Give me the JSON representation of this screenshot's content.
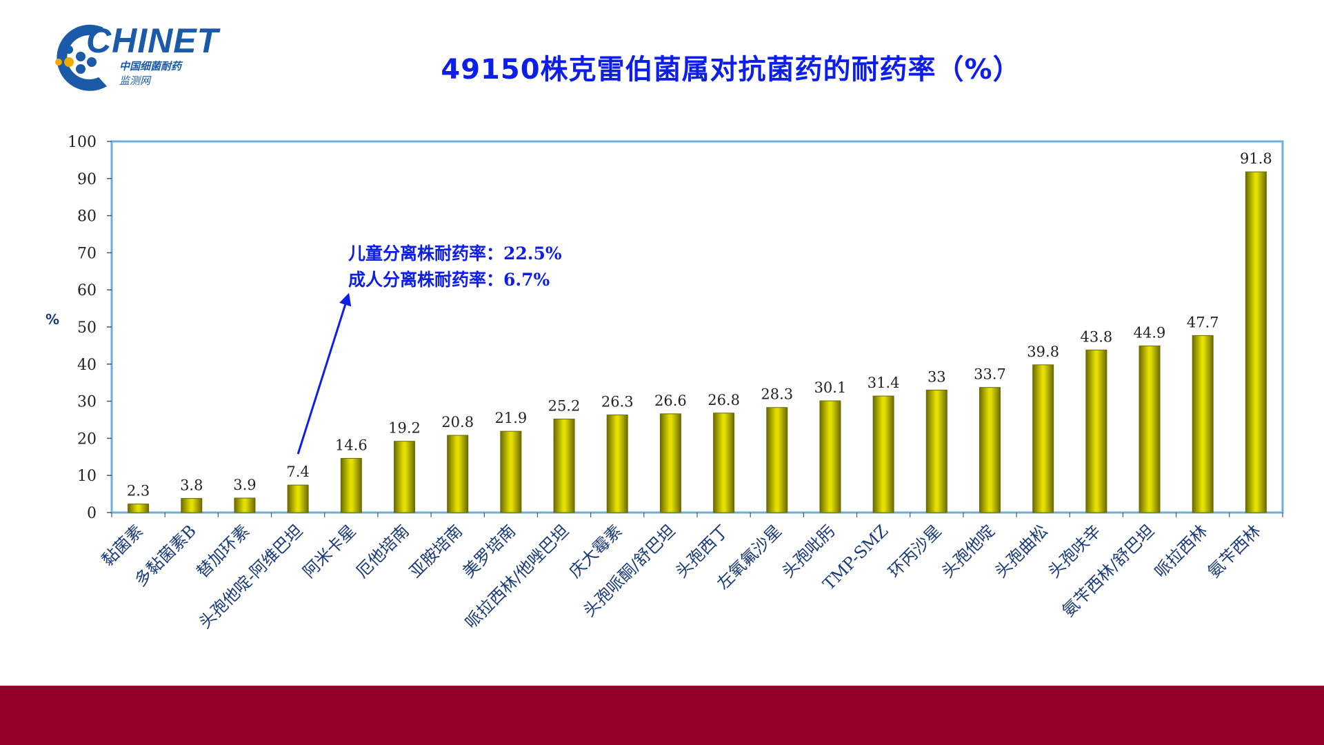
{
  "logo": {
    "word": "CHINET",
    "cn_line1": "中国细菌耐药",
    "cn_line2": "监测网"
  },
  "title": "49150株克雷伯菌属对抗菌药的耐药率（%）",
  "annotation": {
    "line1": "儿童分离株耐药率：22.5%",
    "line2": "成人分离株耐药率：6.7%"
  },
  "colors": {
    "title": "#0d1ee8",
    "bar_fill": "#e3e000",
    "bar_edge": "#6b6a00",
    "plot_border": "#6aaee0",
    "arrow": "#0d1ee8",
    "footer": "#940027",
    "logo": "#1a5aa8"
  },
  "chart_data": {
    "type": "bar",
    "title": "49150株克雷伯菌属对抗菌药的耐药率（%）",
    "ylabel": "%",
    "xlabel": "",
    "ylim": [
      0,
      100
    ],
    "yticks": [
      0,
      10,
      20,
      30,
      40,
      50,
      60,
      70,
      80,
      90,
      100
    ],
    "grid": false,
    "categories": [
      "黏菌素",
      "多黏菌素B",
      "替加环素",
      "头孢他啶-阿维巴坦",
      "阿米卡星",
      "厄他培南",
      "亚胺培南",
      "美罗培南",
      "哌拉西林/他唑巴坦",
      "庆大霉素",
      "头孢哌酮/舒巴坦",
      "头孢西丁",
      "左氧氟沙星",
      "头孢吡肟",
      "TMP-SMZ",
      "环丙沙星",
      "头孢他啶",
      "头孢曲松",
      "头孢呋辛",
      "氨苄西林/舒巴坦",
      "哌拉西林",
      "氨苄西林"
    ],
    "values": [
      2.3,
      3.8,
      3.9,
      7.4,
      14.6,
      19.2,
      20.8,
      21.9,
      25.2,
      26.3,
      26.6,
      26.8,
      28.3,
      30.1,
      31.4,
      33,
      33.7,
      39.8,
      43.8,
      44.9,
      47.7,
      91.8
    ],
    "data_labels": [
      "2.3",
      "3.8",
      "3.9",
      "7.4",
      "14.6",
      "19.2",
      "20.8",
      "21.9",
      "25.2",
      "26.3",
      "26.6",
      "26.8",
      "28.3",
      "30.1",
      "31.4",
      "33",
      "33.7",
      "39.8",
      "43.8",
      "44.9",
      "47.7",
      "91.8"
    ]
  }
}
